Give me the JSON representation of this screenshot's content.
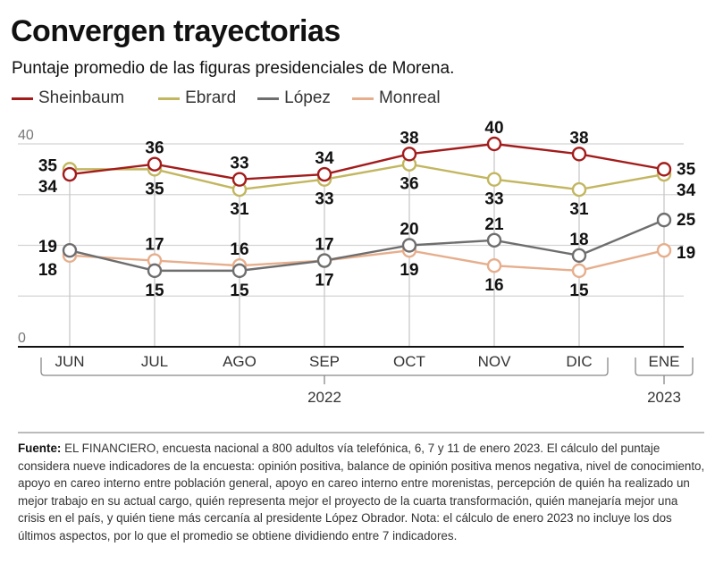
{
  "title": "Convergen trayectorias",
  "subtitle": "Puntaje promedio de las figuras presidenciales de Morena.",
  "legend": [
    {
      "name": "Sheinbaum",
      "color": "#a31c1c"
    },
    {
      "name": "Ebrard",
      "color": "#c2b660"
    },
    {
      "name": "López",
      "color": "#6e6e6e"
    },
    {
      "name": "Monreal",
      "color": "#e6ae8c"
    }
  ],
  "chart_data": {
    "type": "line",
    "title": "Convergen trayectorias",
    "subtitle": "Puntaje promedio de las figuras presidenciales de Morena.",
    "xlabel": "",
    "ylabel": "",
    "categories": [
      "JUN",
      "JUL",
      "AGO",
      "SEP",
      "OCT",
      "NOV",
      "DIC",
      "ENE"
    ],
    "year_groups": [
      {
        "label": "2022",
        "from": "JUN",
        "to": "DIC"
      },
      {
        "label": "2023",
        "from": "ENE",
        "to": "ENE"
      }
    ],
    "ylim": [
      0,
      40
    ],
    "y_tick_labels": [
      "0",
      "40"
    ],
    "gridlines": [
      10,
      20,
      30,
      40
    ],
    "grid": true,
    "legend_position": "top-left",
    "series": [
      {
        "name": "Sheinbaum",
        "color": "#a31c1c",
        "values": [
          34,
          36,
          33,
          34,
          38,
          40,
          38,
          35
        ]
      },
      {
        "name": "Ebrard",
        "color": "#c2b660",
        "values": [
          35,
          35,
          31,
          33,
          36,
          33,
          31,
          34
        ]
      },
      {
        "name": "López",
        "color": "#6e6e6e",
        "values": [
          19,
          15,
          15,
          17,
          20,
          21,
          18,
          25
        ]
      },
      {
        "name": "Monreal",
        "color": "#e6ae8c",
        "values": [
          18,
          17,
          16,
          17,
          19,
          16,
          15,
          19
        ]
      }
    ]
  },
  "footnote": {
    "source_label": "Fuente:",
    "source_text": " EL FINANCIERO, encuesta nacional a 800 adultos vía telefónica, 6, 7 y 11 de enero 2023. El cálculo del puntaje considera nueve indicadores de la encuesta: opinión positiva, balance de opinión positiva menos negativa, nivel de conocimiento, apoyo en careo interno entre población general, apoyo en careo interno entre morenistas, percepción de quién ha realizado un mejor trabajo en su actual cargo, quién representa mejor el proyecto de la cuarta transformación, quién manejaría mejor una crisis en el país, y quién tiene más cercanía al presidente López Obrador.",
    "note_text": "Nota: el cálculo de enero 2023 no incluye los dos últimos aspectos, por lo que el promedio se obtiene dividiendo entre 7 indicadores."
  }
}
